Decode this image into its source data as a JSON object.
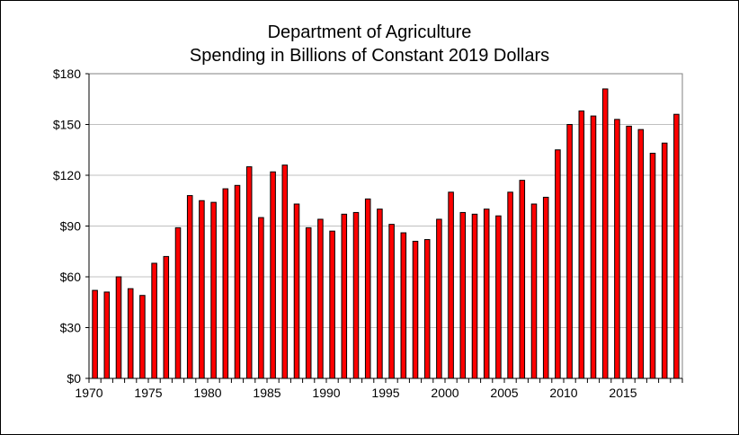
{
  "chart_data": {
    "type": "bar",
    "title": "Department of Agriculture",
    "subtitle": "Spending in Billions of Constant 2019 Dollars",
    "xlabel": "",
    "ylabel": "",
    "categories": [
      1970,
      1971,
      1972,
      1973,
      1974,
      1975,
      1976,
      1977,
      1978,
      1979,
      1980,
      1981,
      1982,
      1983,
      1984,
      1985,
      1986,
      1987,
      1988,
      1989,
      1990,
      1991,
      1992,
      1993,
      1994,
      1995,
      1996,
      1997,
      1998,
      1999,
      2000,
      2001,
      2002,
      2003,
      2004,
      2005,
      2006,
      2007,
      2008,
      2009,
      2010,
      2011,
      2012,
      2013,
      2014,
      2015,
      2016,
      2017,
      2018,
      2019
    ],
    "values": [
      52,
      51,
      60,
      53,
      49,
      68,
      72,
      89,
      108,
      105,
      104,
      112,
      114,
      125,
      95,
      122,
      126,
      103,
      89,
      94,
      87,
      97,
      98,
      106,
      100,
      91,
      86,
      81,
      82,
      94,
      110,
      98,
      97,
      100,
      96,
      110,
      117,
      103,
      107,
      135,
      150,
      158,
      155,
      171,
      153,
      149,
      147,
      133,
      139,
      156
    ],
    "ylim": [
      0,
      180
    ],
    "y_ticks": [
      0,
      30,
      60,
      90,
      120,
      150,
      180
    ],
    "y_tick_labels": [
      "$0",
      "$30",
      "$60",
      "$90",
      "$120",
      "$150",
      "$180"
    ],
    "x_tick_labels": [
      "1970",
      "1975",
      "1980",
      "1985",
      "1990",
      "1995",
      "2000",
      "2005",
      "2010",
      "2015"
    ],
    "grid": true,
    "legend": "none",
    "bar_color": "#ff0000"
  }
}
